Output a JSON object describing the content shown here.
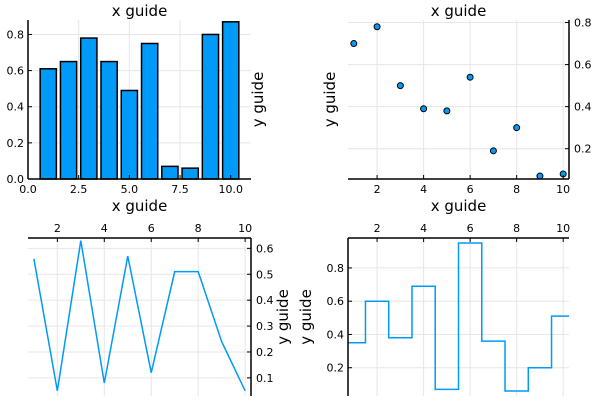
{
  "colors": {
    "series": "#009AF9",
    "outline": "#000000"
  },
  "chart_data": [
    {
      "type": "bar",
      "title": "x guide",
      "xlabel": "",
      "ylabel": "y guide",
      "x": [
        1,
        2,
        3,
        4,
        5,
        6,
        7,
        8,
        9,
        10
      ],
      "values": [
        0.61,
        0.65,
        0.78,
        0.65,
        0.49,
        0.75,
        0.07,
        0.06,
        0.8,
        0.87
      ],
      "xlim": [
        0,
        11
      ],
      "ylim": [
        0,
        0.88
      ],
      "xticks": [
        0.0,
        2.5,
        5.0,
        7.5,
        10.0
      ],
      "xtick_labels": [
        "0.0",
        "2.5",
        "5.0",
        "7.5",
        "10.0"
      ],
      "yticks": [
        0.0,
        0.2,
        0.4,
        0.6,
        0.8
      ],
      "ytick_labels": [
        "0.0",
        "0.2",
        "0.4",
        "0.6",
        "0.8"
      ],
      "x_axis_position": "bottom",
      "y_axis_position": "left",
      "grid": true,
      "legend": "none"
    },
    {
      "type": "scatter",
      "title": "x guide",
      "xlabel": "",
      "ylabel": "y guide",
      "x": [
        1,
        2,
        3,
        4,
        5,
        6,
        7,
        8,
        9,
        10
      ],
      "values": [
        0.7,
        0.78,
        0.5,
        0.39,
        0.38,
        0.54,
        0.19,
        0.3,
        0.07,
        0.08
      ],
      "xlim": [
        0.75,
        10.25
      ],
      "ylim": [
        0.056,
        0.812
      ],
      "xticks": [
        2,
        4,
        6,
        8,
        10
      ],
      "xtick_labels": [
        "2",
        "4",
        "6",
        "8",
        "10"
      ],
      "yticks": [
        0.2,
        0.4,
        0.6,
        0.8
      ],
      "ytick_labels": [
        "0.2",
        "0.4",
        "0.6",
        "0.8"
      ],
      "x_axis_position": "bottom",
      "y_axis_position": "right",
      "grid": true,
      "legend": "none"
    },
    {
      "type": "line",
      "title": "",
      "xlabel": "x guide",
      "ylabel": "y guide",
      "x": [
        1,
        2,
        3,
        4,
        5,
        6,
        7,
        8,
        9,
        10
      ],
      "values": [
        0.56,
        0.05,
        0.63,
        0.08,
        0.57,
        0.12,
        0.51,
        0.51,
        0.24,
        0.05
      ],
      "xlim": [
        0.75,
        10.25
      ],
      "ylim": [
        0.03,
        0.64
      ],
      "xticks": [
        2,
        4,
        6,
        8,
        10
      ],
      "xtick_labels": [
        "2",
        "4",
        "6",
        "8",
        "10"
      ],
      "yticks": [
        0.1,
        0.2,
        0.3,
        0.4,
        0.5,
        0.6
      ],
      "ytick_labels": [
        "0.1",
        "0.2",
        "0.3",
        "0.4",
        "0.5",
        "0.6"
      ],
      "x_axis_position": "top",
      "y_axis_position": "right",
      "grid": true,
      "legend": "none"
    },
    {
      "type": "step",
      "title": "",
      "xlabel": "x guide",
      "ylabel": "y guide",
      "x": [
        1,
        2,
        3,
        4,
        5,
        6,
        7,
        8,
        9,
        10
      ],
      "values": [
        0.35,
        0.6,
        0.38,
        0.69,
        0.07,
        0.95,
        0.36,
        0.06,
        0.2,
        0.51
      ],
      "xlim": [
        0.75,
        10.25
      ],
      "ylim": [
        0.03,
        0.98
      ],
      "xticks": [
        2,
        4,
        6,
        8,
        10
      ],
      "xtick_labels": [
        "2",
        "4",
        "6",
        "8",
        "10"
      ],
      "yticks": [
        0.2,
        0.4,
        0.6,
        0.8
      ],
      "ytick_labels": [
        "0.2",
        "0.4",
        "0.6",
        "0.8"
      ],
      "x_axis_position": "top",
      "y_axis_position": "left",
      "grid": true,
      "legend": "none"
    }
  ]
}
